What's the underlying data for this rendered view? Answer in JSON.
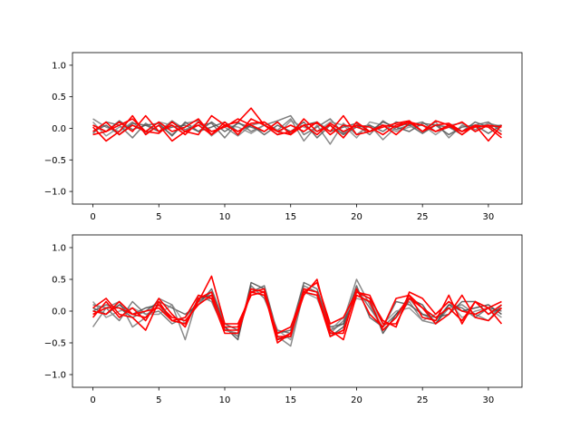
{
  "chart_data": [
    {
      "type": "line",
      "title": "",
      "xlabel": "",
      "ylabel": "",
      "xlim": [
        -1.55,
        32.55
      ],
      "ylim": [
        -1.2,
        1.2
      ],
      "xticks": [
        0,
        5,
        10,
        15,
        20,
        25,
        30
      ],
      "yticks": [
        -1.0,
        -0.5,
        0.0,
        0.5,
        1.0
      ],
      "xticklabels": [
        "0",
        "5",
        "10",
        "15",
        "20",
        "25",
        "30"
      ],
      "yticklabels": [
        "−1.0",
        "−0.5",
        "0.0",
        "0.5",
        "1.0"
      ],
      "grid": false,
      "x": [
        0,
        1,
        2,
        3,
        4,
        5,
        6,
        7,
        8,
        9,
        10,
        11,
        12,
        13,
        14,
        15,
        16,
        17,
        18,
        19,
        20,
        21,
        22,
        23,
        24,
        25,
        26,
        27,
        28,
        29,
        30,
        31
      ],
      "series": [
        {
          "color": "#777777",
          "values": [
            0.15,
            0.02,
            -0.05,
            0.1,
            -0.08,
            0.05,
            -0.1,
            0.08,
            0.12,
            -0.05,
            0.02,
            -0.12,
            0.05,
            0.1,
            -0.03,
            0.15,
            -0.2,
            0.05,
            -0.25,
            0.08,
            -0.1,
            0.05,
            -0.18,
            0.02,
            0.08,
            -0.05,
            0.1,
            -0.15,
            0.05,
            -0.02,
            0.08,
            0.03
          ]
        },
        {
          "color": "#666666",
          "values": [
            -0.08,
            0.1,
            0.05,
            -0.15,
            0.08,
            -0.05,
            0.12,
            -0.02,
            0.05,
            0.08,
            -0.15,
            0.1,
            -0.05,
            0.05,
            0.12,
            0.2,
            -0.1,
            0.02,
            0.15,
            -0.08,
            0.05,
            -0.1,
            0.12,
            -0.02,
            0.05,
            0.1,
            -0.05,
            0.02,
            -0.1,
            0.05,
            0.1,
            -0.05
          ]
        },
        {
          "color": "#555555",
          "values": [
            0.05,
            -0.05,
            0.12,
            -0.02,
            0.05,
            0.08,
            -0.12,
            0.1,
            -0.05,
            0.02,
            0.1,
            -0.05,
            0.05,
            -0.1,
            0.05,
            -0.05,
            0.1,
            -0.15,
            0.05,
            -0.1,
            0.02,
            0.05,
            -0.05,
            0.1,
            0.05,
            -0.08,
            0.05,
            0.02,
            -0.05,
            0.1,
            0.02,
            0.05
          ]
        },
        {
          "color": "#888888",
          "values": [
            0.1,
            -0.12,
            0.02,
            0.05,
            -0.05,
            0.1,
            0.05,
            -0.05,
            0.1,
            -0.12,
            0.05,
            0.02,
            -0.08,
            0.05,
            -0.1,
            0.12,
            0.02,
            -0.05,
            0.1,
            0.05,
            -0.15,
            0.1,
            0.05,
            -0.05,
            0.02,
            0.05,
            -0.1,
            0.05,
            0.08,
            -0.05,
            0.05,
            -0.1
          ]
        },
        {
          "color": "#555555",
          "values": [
            -0.05,
            0.05,
            -0.1,
            0.08,
            0.05,
            -0.05,
            0.02,
            0.05,
            -0.05,
            0.1,
            -0.05,
            0.08,
            0.02,
            -0.05,
            0.1,
            -0.08,
            0.05,
            0.1,
            -0.05,
            0.02,
            0.08,
            -0.05,
            0.1,
            0.02,
            -0.05,
            0.08,
            0.05,
            -0.1,
            0.02,
            0.05,
            -0.08,
            0.05
          ]
        },
        {
          "color": "#ff0000",
          "values": [
            0.02,
            -0.2,
            -0.05,
            0.2,
            -0.1,
            0.05,
            -0.2,
            -0.05,
            -0.1,
            0.2,
            0.05,
            0.1,
            0.32,
            0.05,
            -0.05,
            -0.1,
            0.15,
            -0.05,
            0.05,
            -0.15,
            0.1,
            -0.05,
            0.02,
            0.08,
            0.12,
            -0.05,
            0.12,
            0.05,
            -0.05,
            0.05,
            -0.2,
            0.05
          ]
        },
        {
          "color": "#ff0000",
          "values": [
            -0.1,
            -0.05,
            0.05,
            0.15,
            -0.05,
            -0.08,
            0.1,
            -0.05,
            0.05,
            -0.1,
            0.1,
            -0.1,
            0.15,
            0.05,
            -0.1,
            -0.05,
            0.05,
            0.08,
            -0.05,
            0.2,
            -0.1,
            -0.05,
            0.05,
            0.02,
            0.1,
            0.05,
            -0.05,
            0.02,
            0.1,
            -0.05,
            0.05,
            -0.1
          ]
        },
        {
          "color": "#ff0000",
          "values": [
            0.05,
            -0.05,
            0.1,
            -0.05,
            0.2,
            -0.05,
            0.05,
            -0.1,
            0.1,
            -0.05,
            0.02,
            0.15,
            0.05,
            -0.05,
            0.1,
            -0.1,
            0.05,
            -0.1,
            0.08,
            -0.05,
            0.05,
            0.02,
            -0.1,
            0.05,
            0.1,
            -0.05,
            0.05,
            0.08,
            -0.05,
            0.02,
            0.05,
            0.02
          ]
        },
        {
          "color": "#ff0000",
          "values": [
            -0.05,
            0.1,
            -0.1,
            0.05,
            -0.05,
            0.1,
            -0.05,
            0.02,
            0.15,
            -0.1,
            0.05,
            -0.05,
            0.08,
            0.1,
            -0.05,
            0.05,
            -0.05,
            0.1,
            -0.1,
            0.05,
            0.02,
            -0.05,
            0.05,
            -0.1,
            0.08,
            0.05,
            -0.05,
            0.05,
            -0.1,
            0.05,
            0.02,
            -0.15
          ]
        }
      ]
    },
    {
      "type": "line",
      "title": "",
      "xlabel": "",
      "ylabel": "",
      "xlim": [
        -1.55,
        32.55
      ],
      "ylim": [
        -1.2,
        1.2
      ],
      "xticks": [
        0,
        5,
        10,
        15,
        20,
        25,
        30
      ],
      "yticks": [
        -1.0,
        -0.5,
        0.0,
        0.5,
        1.0
      ],
      "xticklabels": [
        "0",
        "5",
        "10",
        "15",
        "20",
        "25",
        "30"
      ],
      "yticklabels": [
        "−1.0",
        "−0.5",
        "0.0",
        "0.5",
        "1.0"
      ],
      "grid": false,
      "x": [
        0,
        1,
        2,
        3,
        4,
        5,
        6,
        7,
        8,
        9,
        10,
        11,
        12,
        13,
        14,
        15,
        16,
        17,
        18,
        19,
        20,
        21,
        22,
        23,
        24,
        25,
        26,
        27,
        28,
        29,
        30,
        31
      ],
      "series": [
        {
          "color": "#777777",
          "values": [
            -0.25,
            0.05,
            0.15,
            -0.25,
            -0.1,
            0.2,
            0.1,
            -0.45,
            0.25,
            0.15,
            -0.3,
            -0.35,
            0.35,
            0.3,
            -0.4,
            -0.55,
            0.3,
            0.25,
            -0.35,
            -0.15,
            0.5,
            0.1,
            -0.3,
            -0.1,
            0.15,
            -0.15,
            -0.2,
            0.05,
            0.1,
            -0.05,
            -0.15,
            0.1
          ]
        },
        {
          "color": "#666666",
          "values": [
            0.1,
            0.05,
            -0.15,
            0.15,
            -0.05,
            0.0,
            -0.2,
            -0.1,
            0.15,
            0.3,
            -0.25,
            -0.4,
            0.4,
            0.2,
            -0.3,
            -0.35,
            0.4,
            0.3,
            -0.3,
            -0.2,
            0.35,
            0.05,
            -0.25,
            -0.05,
            0.2,
            -0.05,
            -0.15,
            0.1,
            0.05,
            -0.1,
            0.05,
            0.0
          ]
        },
        {
          "color": "#444444",
          "values": [
            0.05,
            -0.05,
            0.1,
            -0.05,
            0.05,
            0.1,
            -0.15,
            -0.2,
            0.2,
            0.25,
            -0.25,
            -0.45,
            0.45,
            0.35,
            -0.45,
            -0.4,
            0.35,
            0.3,
            -0.4,
            -0.25,
            0.3,
            0.2,
            -0.35,
            -0.05,
            0.2,
            0.1,
            -0.2,
            0.1,
            0.0,
            0.05,
            0.1,
            -0.05
          ]
        },
        {
          "color": "#555555",
          "values": [
            0.0,
            0.1,
            0.05,
            -0.1,
            0.0,
            0.15,
            0.05,
            -0.05,
            0.1,
            0.35,
            -0.2,
            -0.3,
            0.3,
            0.4,
            -0.35,
            -0.3,
            0.45,
            0.35,
            -0.25,
            -0.2,
            0.4,
            -0.1,
            -0.25,
            0.15,
            0.1,
            -0.05,
            -0.1,
            -0.05,
            0.15,
            0.15,
            -0.05,
            0.05
          ]
        },
        {
          "color": "#888888",
          "values": [
            0.15,
            -0.1,
            0.0,
            0.05,
            -0.05,
            -0.05,
            0.1,
            -0.2,
            0.15,
            0.2,
            -0.3,
            -0.35,
            0.3,
            0.25,
            -0.3,
            -0.45,
            0.3,
            0.2,
            -0.3,
            -0.1,
            0.2,
            0.15,
            -0.2,
            0.0,
            0.05,
            -0.15,
            -0.05,
            0.15,
            -0.1,
            0.0,
            0.05,
            -0.1
          ]
        },
        {
          "color": "#ff0000",
          "values": [
            0.05,
            0.2,
            -0.05,
            -0.1,
            -0.3,
            0.15,
            -0.15,
            -0.2,
            0.15,
            0.55,
            -0.2,
            -0.2,
            0.25,
            0.3,
            -0.45,
            -0.35,
            0.3,
            0.25,
            -0.4,
            -0.3,
            0.3,
            0.2,
            -0.15,
            -0.25,
            0.3,
            0.2,
            -0.05,
            0.15,
            0.0,
            -0.05,
            0.05,
            0.15
          ]
        },
        {
          "color": "#ff0000",
          "values": [
            -0.1,
            0.15,
            -0.1,
            0.05,
            -0.15,
            0.2,
            -0.05,
            -0.25,
            0.2,
            0.3,
            -0.3,
            -0.3,
            0.35,
            0.3,
            -0.5,
            -0.35,
            0.25,
            0.5,
            -0.3,
            -0.45,
            0.25,
            0.15,
            -0.3,
            -0.1,
            0.25,
            -0.1,
            -0.15,
            0.25,
            -0.2,
            0.15,
            0.05,
            -0.2
          ]
        },
        {
          "color": "#ff0000",
          "values": [
            -0.05,
            0.05,
            0.05,
            -0.05,
            -0.1,
            0.1,
            -0.1,
            -0.15,
            0.1,
            0.25,
            -0.25,
            -0.25,
            0.3,
            0.35,
            -0.4,
            -0.4,
            0.35,
            0.3,
            -0.35,
            -0.35,
            0.35,
            -0.05,
            -0.25,
            0.2,
            0.25,
            0.05,
            -0.1,
            0.05,
            -0.15,
            0.15,
            -0.05,
            0.1
          ]
        },
        {
          "color": "#ff0000",
          "values": [
            0.0,
            -0.05,
            0.15,
            -0.05,
            0.0,
            0.05,
            -0.15,
            -0.1,
            0.25,
            0.2,
            -0.35,
            -0.35,
            0.3,
            0.25,
            -0.35,
            -0.25,
            0.3,
            0.45,
            -0.2,
            -0.1,
            0.3,
            0.25,
            -0.2,
            -0.2,
            0.2,
            0.05,
            -0.2,
            -0.05,
            0.25,
            -0.1,
            -0.15,
            0.05
          ]
        }
      ]
    }
  ]
}
